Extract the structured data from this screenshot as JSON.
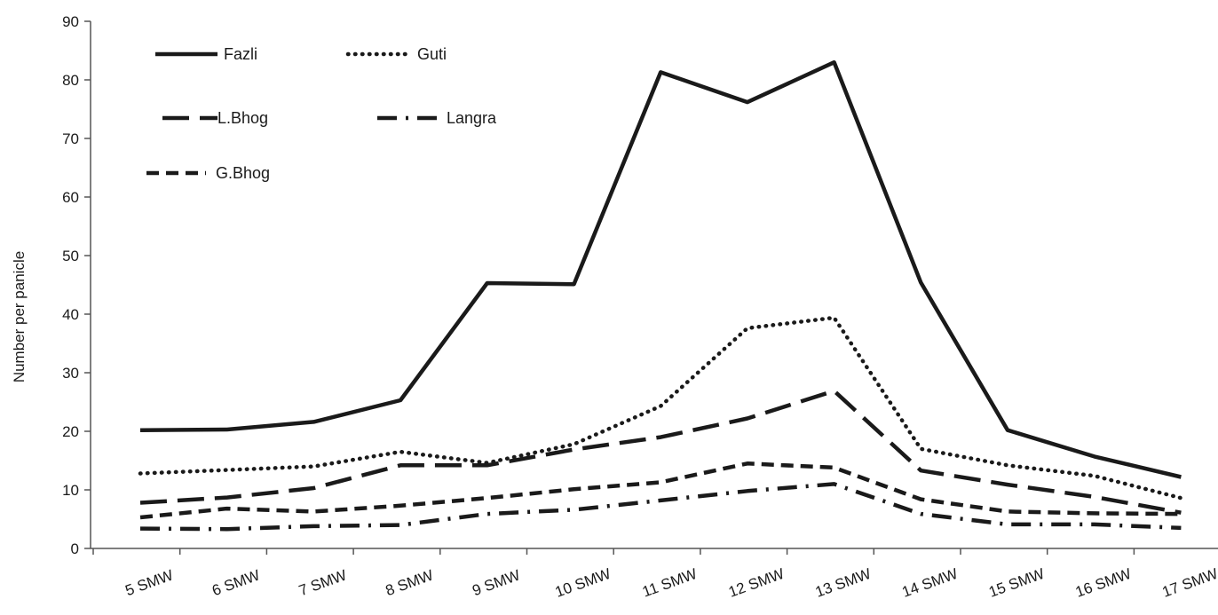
{
  "chart_data": {
    "type": "line",
    "title": "",
    "xlabel": "",
    "ylabel": "Number per panicle",
    "ylim": [
      0,
      90
    ],
    "yticks": [
      0,
      10,
      20,
      30,
      40,
      50,
      60,
      70,
      80,
      90
    ],
    "grid": false,
    "legend_position": "top-left",
    "categories": [
      "5 SMW",
      "6 SMW",
      "7 SMW",
      "8 SMW",
      "9 SMW",
      "10 SMW",
      "11 SMW",
      "12 SMW",
      "13 SMW",
      "14 SMW",
      "15 SMW",
      "16 SMW",
      "17 SMW"
    ],
    "series": [
      {
        "name": "Fazli",
        "style": "solid",
        "color": "#1a1a1a",
        "values": [
          20.2,
          20.3,
          21.6,
          25.3,
          45.3,
          45.1,
          81.3,
          76.2,
          83.0,
          45.4,
          20.2,
          15.7,
          12.2
        ]
      },
      {
        "name": "Guti",
        "style": "dotted",
        "color": "#1a1a1a",
        "values": [
          12.8,
          13.4,
          14.0,
          16.5,
          14.6,
          17.8,
          24.3,
          37.6,
          39.4,
          17.0,
          14.2,
          12.4,
          8.6
        ]
      },
      {
        "name": "L.Bhog",
        "style": "long-dash",
        "color": "#1a1a1a",
        "values": [
          7.8,
          8.7,
          10.3,
          14.2,
          14.2,
          16.9,
          19.0,
          22.2,
          26.9,
          13.3,
          10.9,
          8.8,
          6.1
        ]
      },
      {
        "name": "Langra",
        "style": "dash-dot",
        "color": "#1a1a1a",
        "values": [
          3.4,
          3.3,
          3.8,
          4.0,
          5.9,
          6.6,
          8.2,
          9.8,
          11.0,
          5.9,
          4.1,
          4.1,
          3.5
        ]
      },
      {
        "name": "G.Bhog",
        "style": "short-dash",
        "color": "#1a1a1a",
        "values": [
          5.3,
          6.8,
          6.3,
          7.3,
          8.6,
          10.1,
          11.3,
          14.5,
          13.8,
          8.4,
          6.3,
          6.0,
          5.9
        ]
      }
    ]
  }
}
